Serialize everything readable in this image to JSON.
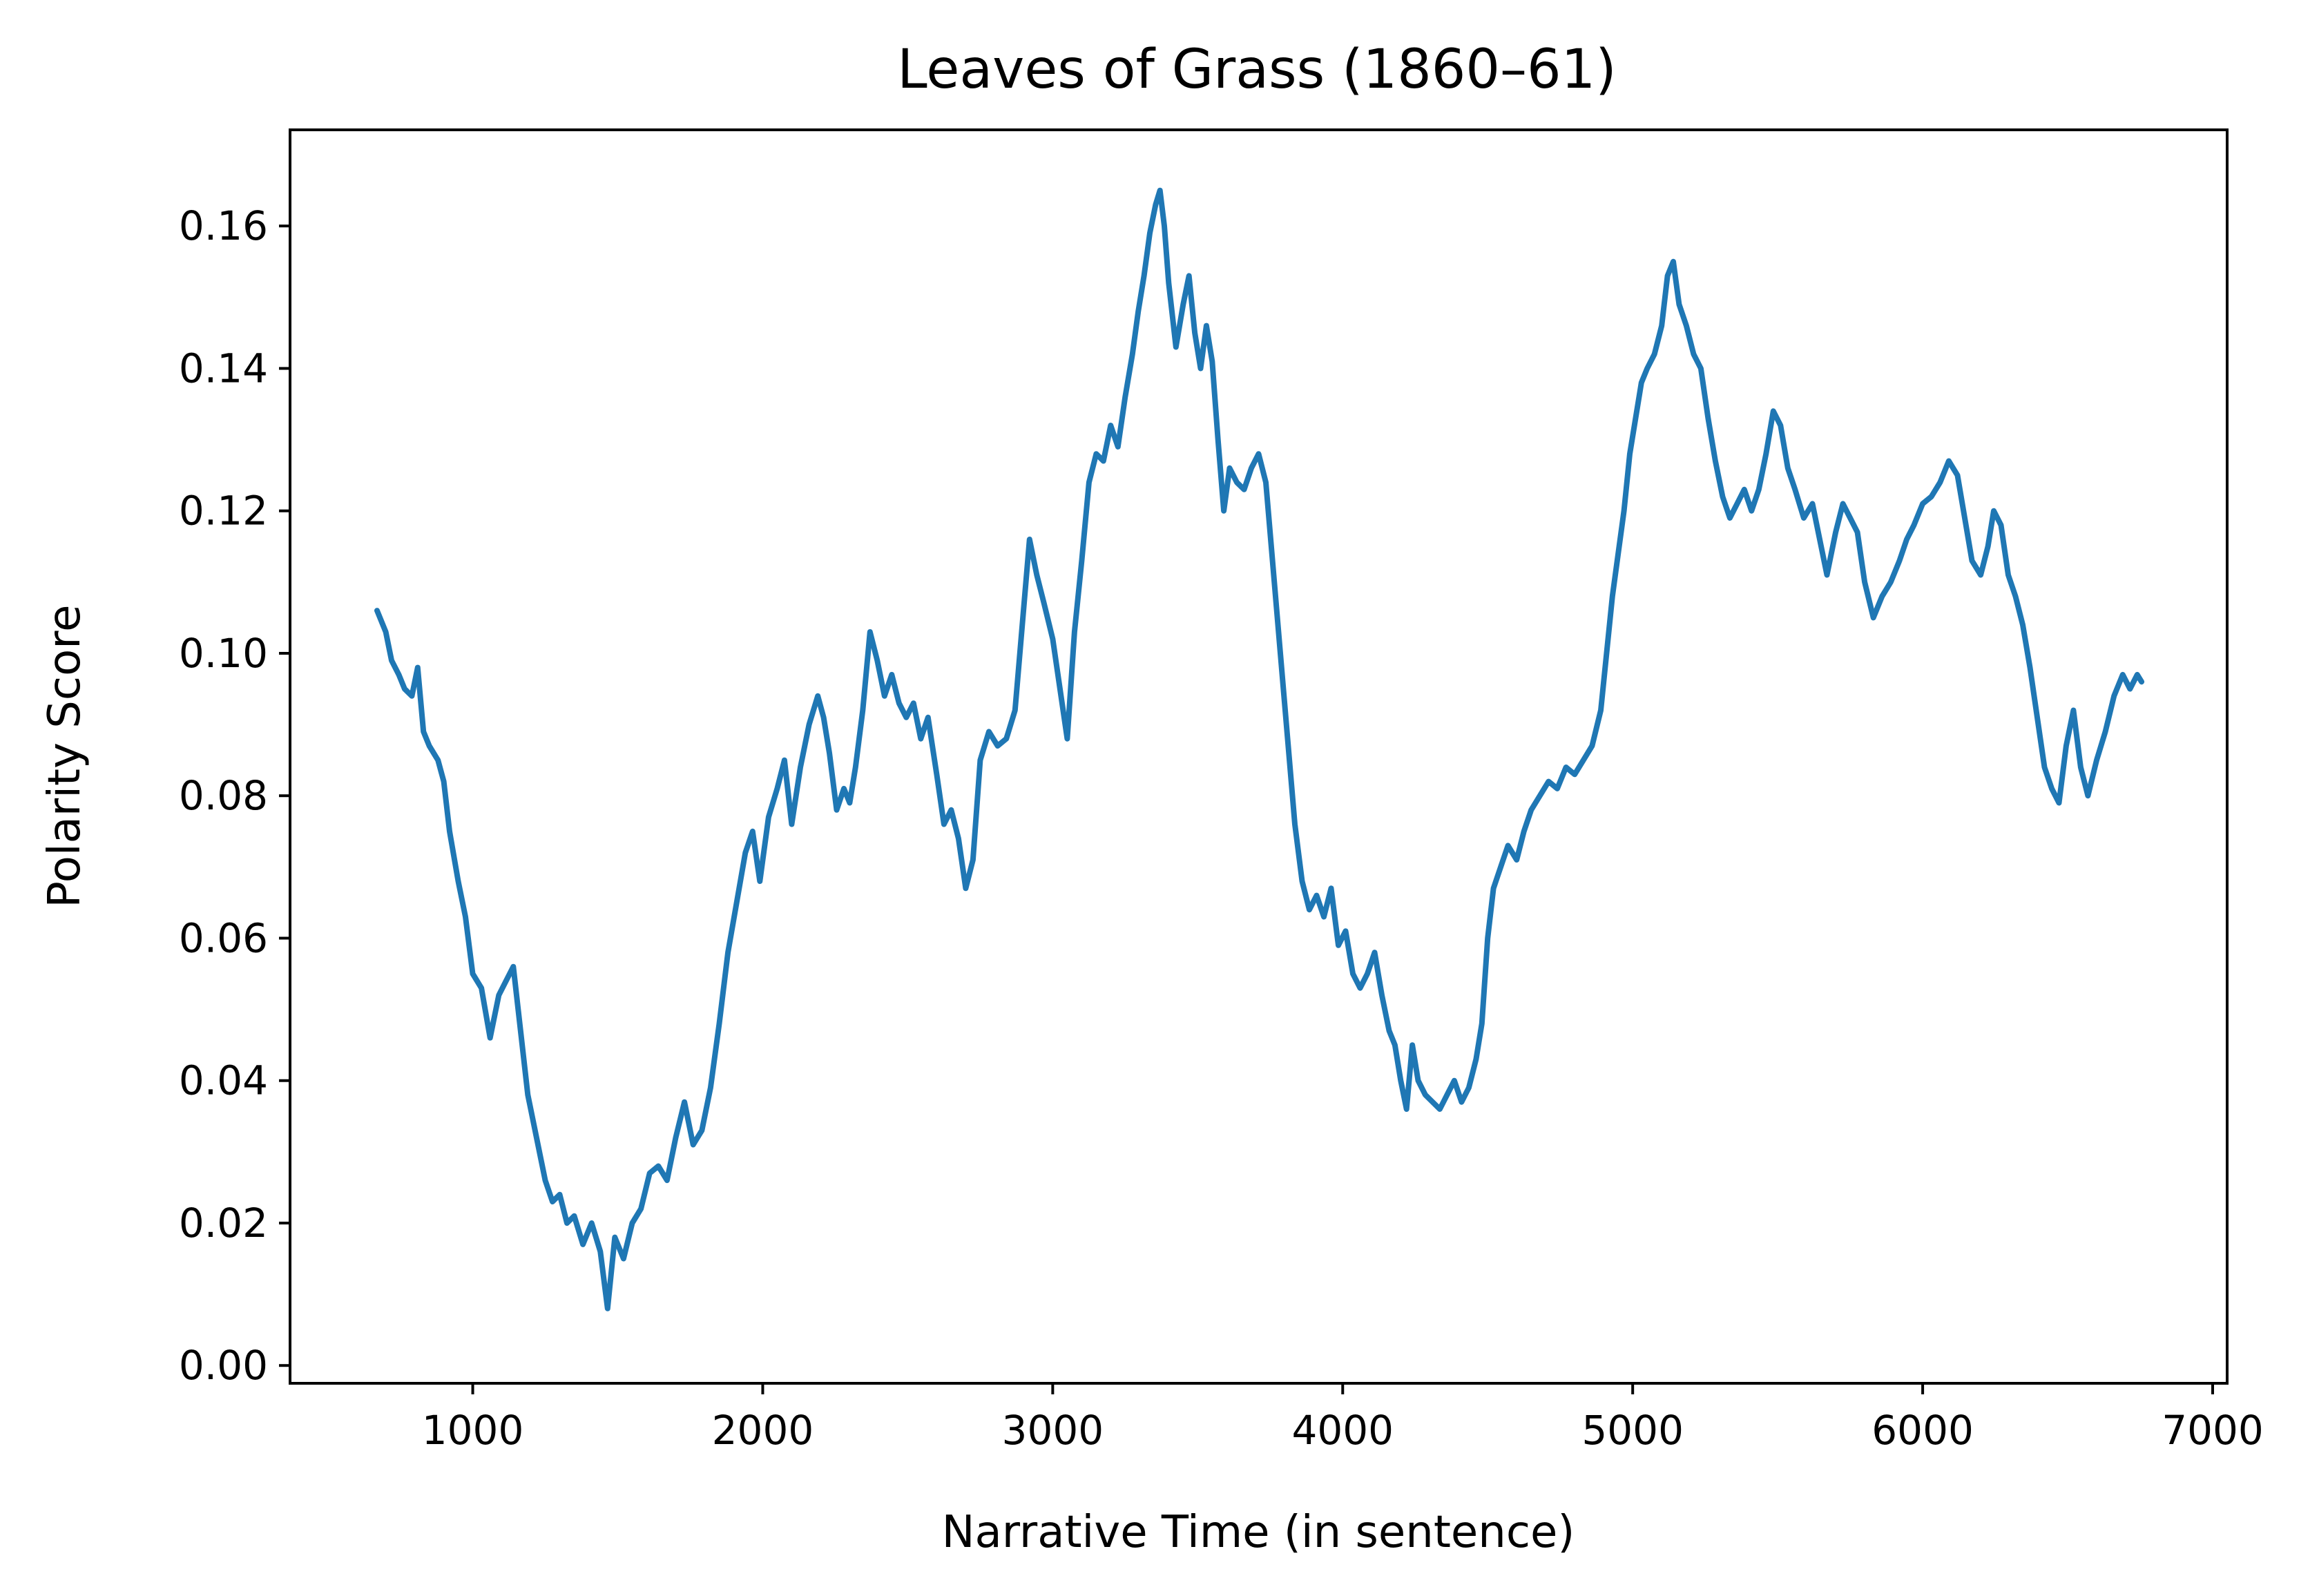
{
  "chart_data": {
    "type": "line",
    "title": "Leaves of Grass (1860–61)",
    "xlabel": "Narrative Time (in sentence)",
    "ylabel": "Polarity Score",
    "xlim": [
      370,
      7050
    ],
    "ylim": [
      -0.0025,
      0.1735
    ],
    "xticks": [
      1000,
      2000,
      3000,
      4000,
      5000,
      6000,
      7000
    ],
    "yticks": [
      0.0,
      0.02,
      0.04,
      0.06,
      0.08,
      0.1,
      0.12,
      0.14,
      0.16
    ],
    "xtick_labels": [
      "1000",
      "2000",
      "3000",
      "4000",
      "5000",
      "6000",
      "7000"
    ],
    "ytick_labels": [
      "0.00",
      "0.02",
      "0.04",
      "0.06",
      "0.08",
      "0.10",
      "0.12",
      "0.14",
      "0.16"
    ],
    "grid": false,
    "colors": {
      "line": "#1f77b4",
      "axes": "#000000",
      "background": "#ffffff"
    },
    "series": [
      {
        "points": [
          [
            670,
            0.106
          ],
          [
            700,
            0.103
          ],
          [
            720,
            0.099
          ],
          [
            745,
            0.097
          ],
          [
            765,
            0.095
          ],
          [
            790,
            0.094
          ],
          [
            810,
            0.098
          ],
          [
            830,
            0.089
          ],
          [
            850,
            0.087
          ],
          [
            880,
            0.085
          ],
          [
            900,
            0.082
          ],
          [
            920,
            0.075
          ],
          [
            950,
            0.068
          ],
          [
            975,
            0.063
          ],
          [
            1000,
            0.055
          ],
          [
            1030,
            0.053
          ],
          [
            1060,
            0.046
          ],
          [
            1090,
            0.052
          ],
          [
            1115,
            0.054
          ],
          [
            1140,
            0.056
          ],
          [
            1165,
            0.047
          ],
          [
            1190,
            0.038
          ],
          [
            1220,
            0.032
          ],
          [
            1250,
            0.026
          ],
          [
            1275,
            0.023
          ],
          [
            1300,
            0.024
          ],
          [
            1325,
            0.02
          ],
          [
            1350,
            0.021
          ],
          [
            1380,
            0.017
          ],
          [
            1410,
            0.02
          ],
          [
            1440,
            0.016
          ],
          [
            1465,
            0.008
          ],
          [
            1490,
            0.018
          ],
          [
            1520,
            0.015
          ],
          [
            1550,
            0.02
          ],
          [
            1580,
            0.022
          ],
          [
            1610,
            0.027
          ],
          [
            1640,
            0.028
          ],
          [
            1670,
            0.026
          ],
          [
            1700,
            0.032
          ],
          [
            1730,
            0.037
          ],
          [
            1760,
            0.031
          ],
          [
            1790,
            0.033
          ],
          [
            1820,
            0.039
          ],
          [
            1850,
            0.048
          ],
          [
            1880,
            0.058
          ],
          [
            1910,
            0.065
          ],
          [
            1940,
            0.072
          ],
          [
            1965,
            0.075
          ],
          [
            1990,
            0.068
          ],
          [
            2020,
            0.077
          ],
          [
            2050,
            0.081
          ],
          [
            2075,
            0.085
          ],
          [
            2100,
            0.076
          ],
          [
            2130,
            0.084
          ],
          [
            2160,
            0.09
          ],
          [
            2190,
            0.094
          ],
          [
            2210,
            0.091
          ],
          [
            2230,
            0.086
          ],
          [
            2255,
            0.078
          ],
          [
            2280,
            0.081
          ],
          [
            2300,
            0.079
          ],
          [
            2320,
            0.084
          ],
          [
            2345,
            0.092
          ],
          [
            2370,
            0.103
          ],
          [
            2395,
            0.099
          ],
          [
            2420,
            0.094
          ],
          [
            2445,
            0.097
          ],
          [
            2470,
            0.093
          ],
          [
            2495,
            0.091
          ],
          [
            2520,
            0.093
          ],
          [
            2545,
            0.088
          ],
          [
            2570,
            0.091
          ],
          [
            2600,
            0.083
          ],
          [
            2625,
            0.076
          ],
          [
            2650,
            0.078
          ],
          [
            2675,
            0.074
          ],
          [
            2700,
            0.067
          ],
          [
            2725,
            0.071
          ],
          [
            2750,
            0.085
          ],
          [
            2780,
            0.089
          ],
          [
            2810,
            0.087
          ],
          [
            2840,
            0.088
          ],
          [
            2870,
            0.092
          ],
          [
            2895,
            0.104
          ],
          [
            2920,
            0.116
          ],
          [
            2945,
            0.111
          ],
          [
            2970,
            0.107
          ],
          [
            3000,
            0.102
          ],
          [
            3025,
            0.095
          ],
          [
            3050,
            0.088
          ],
          [
            3075,
            0.103
          ],
          [
            3100,
            0.113
          ],
          [
            3125,
            0.124
          ],
          [
            3150,
            0.128
          ],
          [
            3175,
            0.127
          ],
          [
            3200,
            0.132
          ],
          [
            3225,
            0.129
          ],
          [
            3250,
            0.136
          ],
          [
            3275,
            0.142
          ],
          [
            3295,
            0.148
          ],
          [
            3315,
            0.153
          ],
          [
            3335,
            0.159
          ],
          [
            3355,
            0.163
          ],
          [
            3370,
            0.165
          ],
          [
            3385,
            0.16
          ],
          [
            3400,
            0.152
          ],
          [
            3425,
            0.143
          ],
          [
            3450,
            0.149
          ],
          [
            3470,
            0.153
          ],
          [
            3490,
            0.145
          ],
          [
            3510,
            0.14
          ],
          [
            3530,
            0.146
          ],
          [
            3550,
            0.141
          ],
          [
            3570,
            0.13
          ],
          [
            3590,
            0.12
          ],
          [
            3610,
            0.126
          ],
          [
            3635,
            0.124
          ],
          [
            3660,
            0.123
          ],
          [
            3685,
            0.126
          ],
          [
            3710,
            0.128
          ],
          [
            3735,
            0.124
          ],
          [
            3760,
            0.112
          ],
          [
            3785,
            0.1
          ],
          [
            3810,
            0.088
          ],
          [
            3835,
            0.076
          ],
          [
            3860,
            0.068
          ],
          [
            3885,
            0.064
          ],
          [
            3910,
            0.066
          ],
          [
            3935,
            0.063
          ],
          [
            3960,
            0.067
          ],
          [
            3985,
            0.059
          ],
          [
            4010,
            0.061
          ],
          [
            4035,
            0.055
          ],
          [
            4060,
            0.053
          ],
          [
            4085,
            0.055
          ],
          [
            4110,
            0.058
          ],
          [
            4135,
            0.052
          ],
          [
            4160,
            0.047
          ],
          [
            4180,
            0.045
          ],
          [
            4200,
            0.04
          ],
          [
            4220,
            0.036
          ],
          [
            4240,
            0.045
          ],
          [
            4260,
            0.04
          ],
          [
            4285,
            0.038
          ],
          [
            4310,
            0.037
          ],
          [
            4335,
            0.036
          ],
          [
            4360,
            0.038
          ],
          [
            4385,
            0.04
          ],
          [
            4410,
            0.037
          ],
          [
            4435,
            0.039
          ],
          [
            4460,
            0.043
          ],
          [
            4480,
            0.048
          ],
          [
            4500,
            0.06
          ],
          [
            4520,
            0.067
          ],
          [
            4545,
            0.07
          ],
          [
            4570,
            0.073
          ],
          [
            4600,
            0.071
          ],
          [
            4625,
            0.075
          ],
          [
            4650,
            0.078
          ],
          [
            4680,
            0.08
          ],
          [
            4710,
            0.082
          ],
          [
            4740,
            0.081
          ],
          [
            4770,
            0.084
          ],
          [
            4800,
            0.083
          ],
          [
            4830,
            0.085
          ],
          [
            4860,
            0.087
          ],
          [
            4890,
            0.092
          ],
          [
            4910,
            0.1
          ],
          [
            4930,
            0.108
          ],
          [
            4950,
            0.114
          ],
          [
            4970,
            0.12
          ],
          [
            4990,
            0.128
          ],
          [
            5010,
            0.133
          ],
          [
            5030,
            0.138
          ],
          [
            5050,
            0.14
          ],
          [
            5075,
            0.142
          ],
          [
            5100,
            0.146
          ],
          [
            5120,
            0.153
          ],
          [
            5140,
            0.155
          ],
          [
            5160,
            0.149
          ],
          [
            5185,
            0.146
          ],
          [
            5210,
            0.142
          ],
          [
            5235,
            0.14
          ],
          [
            5260,
            0.133
          ],
          [
            5285,
            0.127
          ],
          [
            5310,
            0.122
          ],
          [
            5335,
            0.119
          ],
          [
            5360,
            0.121
          ],
          [
            5385,
            0.123
          ],
          [
            5410,
            0.12
          ],
          [
            5435,
            0.123
          ],
          [
            5460,
            0.128
          ],
          [
            5485,
            0.134
          ],
          [
            5510,
            0.132
          ],
          [
            5535,
            0.126
          ],
          [
            5560,
            0.123
          ],
          [
            5590,
            0.119
          ],
          [
            5620,
            0.121
          ],
          [
            5645,
            0.116
          ],
          [
            5670,
            0.111
          ],
          [
            5700,
            0.117
          ],
          [
            5725,
            0.121
          ],
          [
            5750,
            0.119
          ],
          [
            5775,
            0.117
          ],
          [
            5800,
            0.11
          ],
          [
            5830,
            0.105
          ],
          [
            5860,
            0.108
          ],
          [
            5890,
            0.11
          ],
          [
            5920,
            0.113
          ],
          [
            5945,
            0.116
          ],
          [
            5970,
            0.118
          ],
          [
            6000,
            0.121
          ],
          [
            6030,
            0.122
          ],
          [
            6060,
            0.124
          ],
          [
            6090,
            0.127
          ],
          [
            6120,
            0.125
          ],
          [
            6145,
            0.119
          ],
          [
            6170,
            0.113
          ],
          [
            6200,
            0.111
          ],
          [
            6225,
            0.115
          ],
          [
            6245,
            0.12
          ],
          [
            6270,
            0.118
          ],
          [
            6295,
            0.111
          ],
          [
            6320,
            0.108
          ],
          [
            6345,
            0.104
          ],
          [
            6370,
            0.098
          ],
          [
            6395,
            0.091
          ],
          [
            6420,
            0.084
          ],
          [
            6445,
            0.081
          ],
          [
            6470,
            0.079
          ],
          [
            6495,
            0.087
          ],
          [
            6520,
            0.092
          ],
          [
            6545,
            0.084
          ],
          [
            6570,
            0.08
          ],
          [
            6600,
            0.085
          ],
          [
            6630,
            0.089
          ],
          [
            6660,
            0.094
          ],
          [
            6690,
            0.097
          ],
          [
            6715,
            0.095
          ],
          [
            6740,
            0.097
          ],
          [
            6755,
            0.096
          ]
        ]
      }
    ]
  }
}
